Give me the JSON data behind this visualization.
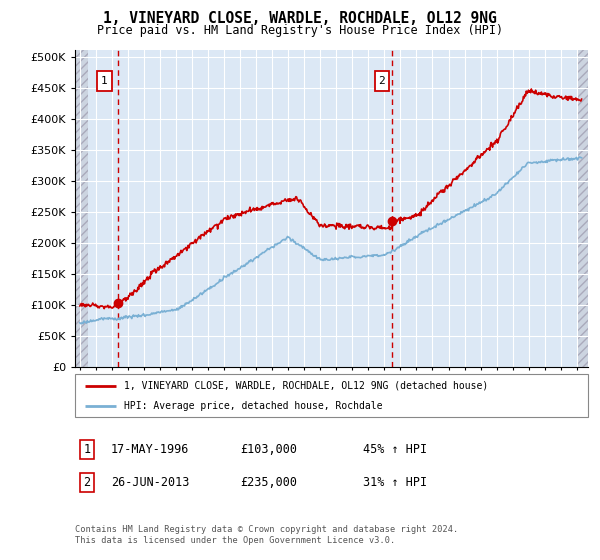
{
  "title": "1, VINEYARD CLOSE, WARDLE, ROCHDALE, OL12 9NG",
  "subtitle": "Price paid vs. HM Land Registry's House Price Index (HPI)",
  "sale1_price": 103000,
  "sale1_label": "17-MAY-1996",
  "sale1_pct": "45%",
  "sale2_price": 235000,
  "sale2_label": "26-JUN-2013",
  "sale2_pct": "31%",
  "sale1_x": 1996.38,
  "sale2_x": 2013.5,
  "red_line_color": "#cc0000",
  "blue_line_color": "#7ab0d4",
  "dashed_color": "#cc0000",
  "plot_bg_color": "#dce8f5",
  "hatch_bg_color": "#ccd4e0",
  "grid_color": "#ffffff",
  "legend_line1": "1, VINEYARD CLOSE, WARDLE, ROCHDALE, OL12 9NG (detached house)",
  "legend_line2": "HPI: Average price, detached house, Rochdale",
  "footer": "Contains HM Land Registry data © Crown copyright and database right 2024.\nThis data is licensed under the Open Government Licence v3.0.",
  "yticks": [
    0,
    50000,
    100000,
    150000,
    200000,
    250000,
    300000,
    350000,
    400000,
    450000,
    500000
  ],
  "ylim": [
    0,
    510000
  ],
  "xlim_start": 1993.7,
  "xlim_end": 2025.7,
  "hatch_left_end": 1994.5,
  "hatch_right_start": 2025.0
}
